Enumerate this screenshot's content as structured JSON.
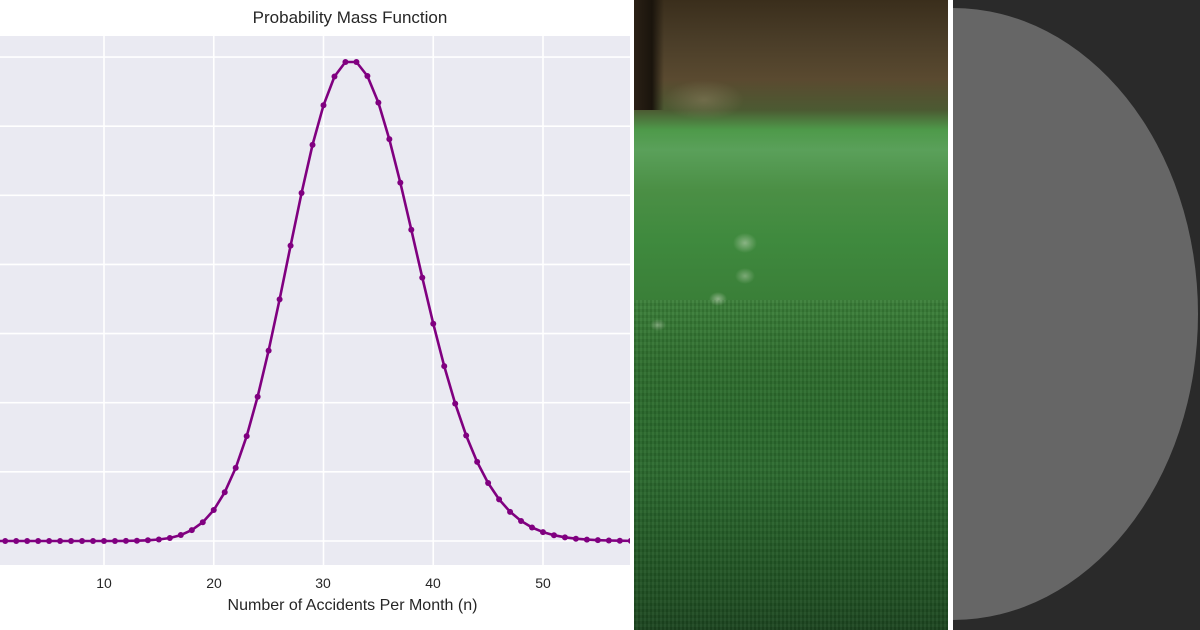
{
  "chart_data": {
    "type": "line",
    "title": "Probability Mass Function",
    "xlabel": "Number of Accidents Per Month (n)",
    "ylabel": "",
    "x_ticks": [
      10,
      20,
      30,
      40,
      50
    ],
    "y_gridlines": [
      0.0,
      0.01,
      0.02,
      0.03,
      0.04,
      0.05,
      0.06,
      0.07
    ],
    "y_tick_labels_visible": false,
    "xlim": [
      0.5,
      57.9
    ],
    "ylim": [
      -0.0035,
      0.0727
    ],
    "grid": true,
    "style": "seaborn-darkgrid",
    "line_color": "#800080",
    "marker": "o",
    "distribution_note": "Poisson-shaped, peak at n=32-33",
    "x": [
      0,
      1,
      2,
      3,
      4,
      5,
      6,
      7,
      8,
      9,
      10,
      11,
      12,
      13,
      14,
      15,
      16,
      17,
      18,
      19,
      20,
      21,
      22,
      23,
      24,
      25,
      26,
      27,
      28,
      29,
      30,
      31,
      32,
      33,
      34,
      35,
      36,
      37,
      38,
      39,
      40,
      41,
      42,
      43,
      44,
      45,
      46,
      47,
      48,
      49,
      50,
      51,
      52,
      53,
      54,
      55,
      56,
      57,
      58
    ],
    "values": [
      0,
      0,
      0,
      0,
      0,
      0,
      0,
      0,
      0,
      0,
      0,
      0,
      2e-05,
      4e-05,
      0.0001,
      0.00021,
      0.00044,
      0.00086,
      0.00157,
      0.00272,
      0.00449,
      0.00705,
      0.01057,
      0.01517,
      0.02086,
      0.02754,
      0.03495,
      0.04272,
      0.05034,
      0.05729,
      0.06302,
      0.06718,
      0.06928,
      0.06928,
      0.06725,
      0.06341,
      0.05812,
      0.05184,
      0.04502,
      0.03809,
      0.03142,
      0.02529,
      0.01987,
      0.01525,
      0.01144,
      0.00839,
      0.00602,
      0.00422,
      0.0029,
      0.00195,
      0.00129,
      0.00084,
      0.00053,
      0.00033,
      0.0002,
      0.00012,
      7e-05,
      4e-05,
      2e-05
    ]
  },
  "chart": {
    "title": "Probability Mass Function",
    "xlabel": "Number of Accidents Per Month (n)",
    "xticks": [
      "10",
      "20",
      "30",
      "40",
      "50"
    ]
  },
  "panels": {
    "photo": "blurred-grass-field-photo",
    "graphic": "gray-half-circle-on-dark"
  },
  "colors": {
    "plot_background": "#eaeaf2",
    "grid": "#ffffff",
    "line": "#800080",
    "dark_panel": "#2a2a2a",
    "half_circle": "#666666"
  }
}
